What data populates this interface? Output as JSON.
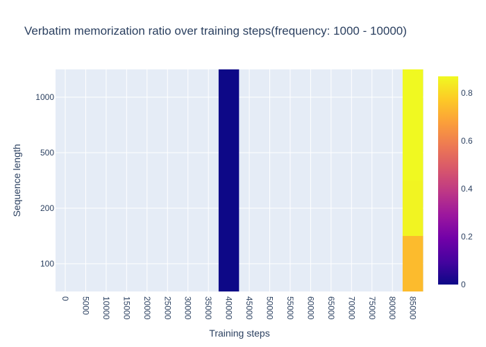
{
  "chart_data": {
    "type": "heatmap",
    "title": "Verbatim memorization ratio over training steps(frequency: 1000 - 10000)",
    "xlabel": "Training steps",
    "ylabel": "Sequence length",
    "x_categories": [
      "0",
      "5000",
      "10000",
      "15000",
      "20000",
      "25000",
      "30000",
      "35000",
      "40000",
      "45000",
      "50000",
      "55000",
      "60000",
      "65000",
      "70000",
      "75000",
      "80000",
      "85000"
    ],
    "y_categories": [
      "100",
      "200",
      "500",
      "1000"
    ],
    "cells": [
      {
        "x": "40000",
        "y": "100",
        "value": 0.0
      },
      {
        "x": "40000",
        "y": "200",
        "value": 0.0
      },
      {
        "x": "40000",
        "y": "500",
        "value": 0.0
      },
      {
        "x": "40000",
        "y": "1000",
        "value": 0.0
      },
      {
        "x": "85000",
        "y": "100",
        "value": 0.74
      },
      {
        "x": "85000",
        "y": "200",
        "value": 0.86
      },
      {
        "x": "85000",
        "y": "500",
        "value": 0.88
      },
      {
        "x": "85000",
        "y": "1000",
        "value": 0.87
      }
    ],
    "colorbar": {
      "min": 0,
      "max": 0.87,
      "ticks": [
        0,
        0.2,
        0.4,
        0.6,
        0.8
      ],
      "colorscale": [
        "#0d0887",
        "#46039f",
        "#7201a8",
        "#9c179e",
        "#bd3786",
        "#d8576b",
        "#ed7953",
        "#fb9f3a",
        "#fdca26",
        "#f0f921"
      ]
    },
    "grid": true,
    "background_color": "#e5ecf6"
  }
}
